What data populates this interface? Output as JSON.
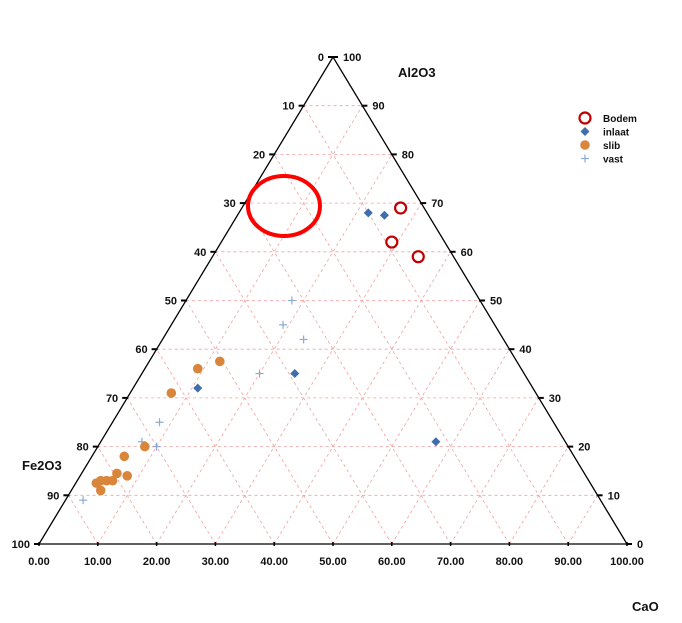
{
  "chart_data": {
    "type": "ternary-scatter",
    "axes": {
      "left": {
        "label": "Fe2O3",
        "ticks": [
          "0",
          "10",
          "20",
          "30",
          "40",
          "50",
          "60",
          "70",
          "80",
          "90",
          "100"
        ]
      },
      "right": {
        "label": "Al2O3",
        "ticks": [
          "100",
          "90",
          "80",
          "70",
          "60",
          "50",
          "40",
          "30",
          "20",
          "10",
          "0"
        ]
      },
      "bottom": {
        "label": "CaO",
        "ticks": [
          "0.00",
          "10.00",
          "20.00",
          "30.00",
          "40.00",
          "50.00",
          "60.00",
          "70.00",
          "80.00",
          "90.00",
          "100.00"
        ]
      }
    },
    "grid": true,
    "grid_color": "#f2a0a0",
    "legend_position": "top-right",
    "series": [
      {
        "name": "Bodem",
        "marker": "open-circle",
        "color": "#c00000",
        "points": [
          {
            "cao": 27,
            "al2o3": 69
          },
          {
            "cao": 29,
            "al2o3": 62
          },
          {
            "cao": 35,
            "al2o3": 59
          }
        ]
      },
      {
        "name": "inlaat",
        "marker": "diamond",
        "color": "#3e6eac",
        "points": [
          {
            "cao": 22,
            "al2o3": 68
          },
          {
            "cao": 25,
            "al2o3": 67.5
          },
          {
            "cao": 26,
            "al2o3": 35
          },
          {
            "cao": 11,
            "al2o3": 32
          },
          {
            "cao": 57,
            "al2o3": 21
          }
        ]
      },
      {
        "name": "slib",
        "marker": "filled-circle",
        "color": "#d9853b",
        "points": [
          {
            "cao": 12,
            "al2o3": 37.5
          },
          {
            "cao": 9,
            "al2o3": 36
          },
          {
            "cao": 7,
            "al2o3": 31
          },
          {
            "cao": 8,
            "al2o3": 20
          },
          {
            "cao": 5.5,
            "al2o3": 18
          },
          {
            "cao": 6,
            "al2o3": 14.5
          },
          {
            "cao": 8,
            "al2o3": 14
          },
          {
            "cao": 4,
            "al2o3": 13
          },
          {
            "cao": 5,
            "al2o3": 13
          },
          {
            "cao": 6,
            "al2o3": 13
          },
          {
            "cao": 3.5,
            "al2o3": 12.5
          },
          {
            "cao": 5,
            "al2o3": 11
          }
        ]
      },
      {
        "name": "vast",
        "marker": "plus",
        "color": "#8ea9d6",
        "points": [
          {
            "cao": 18,
            "al2o3": 50
          },
          {
            "cao": 19,
            "al2o3": 45
          },
          {
            "cao": 24,
            "al2o3": 42
          },
          {
            "cao": 20,
            "al2o3": 35
          },
          {
            "cao": 8,
            "al2o3": 25
          },
          {
            "cao": 7,
            "al2o3": 21
          },
          {
            "cao": 10,
            "al2o3": 20
          },
          {
            "cao": 3,
            "al2o3": 9
          }
        ]
      }
    ]
  },
  "annotation": {
    "type": "ellipse",
    "color": "#ff0000"
  }
}
